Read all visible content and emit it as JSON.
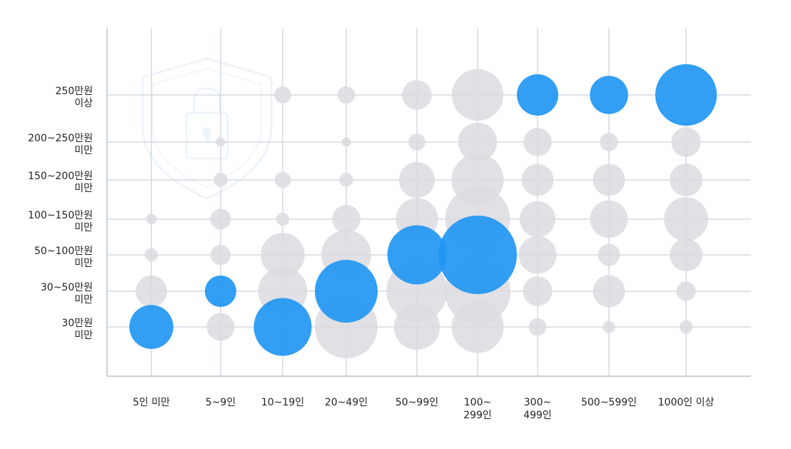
{
  "chart_data": {
    "type": "bubble",
    "x_categories": [
      "5인 미만",
      "5~9인",
      "10~19인",
      "20~49인",
      "50~99인",
      "100~ 299인",
      "300~ 499인",
      "500~599인",
      "1000인 이상"
    ],
    "x_tick_lines": [
      [
        "5인 미만"
      ],
      [
        "5~9인"
      ],
      [
        "10~19인"
      ],
      [
        "20~49인"
      ],
      [
        "50~99인"
      ],
      [
        "100~",
        "299인"
      ],
      [
        "300~",
        "499인"
      ],
      [
        "500~599인"
      ],
      [
        "1000인 이상"
      ]
    ],
    "y_categories": [
      "30만원 미만",
      "30~50만원 미만",
      "50~100만원 미만",
      "100~150만원 미만",
      "150~200만원 미만",
      "200~250만원 미만",
      "250만원 이상"
    ],
    "y_tick_lines": [
      [
        "30만원",
        "미만"
      ],
      [
        "30~50만원",
        "미만"
      ],
      [
        "50~100만원",
        "미만"
      ],
      [
        "100~150만원",
        "미만"
      ],
      [
        "150~200만원",
        "미만"
      ],
      [
        "200~250만원",
        "미만"
      ],
      [
        "250만원",
        "이상"
      ]
    ],
    "bubbles": [
      {
        "x": "5인 미만",
        "y": "30만원 미만",
        "r": 0.7,
        "highlight": true
      },
      {
        "x": "5인 미만",
        "y": "30~50만원 미만",
        "r": 0.5,
        "highlight": false
      },
      {
        "x": "5인 미만",
        "y": "50~100만원 미만",
        "r": 0.21,
        "highlight": false
      },
      {
        "x": "5인 미만",
        "y": "100~150만원 미만",
        "r": 0.17,
        "highlight": false
      },
      {
        "x": "5~9인",
        "y": "30만원 미만",
        "r": 0.44,
        "highlight": false
      },
      {
        "x": "5~9인",
        "y": "30~50만원 미만",
        "r": 0.5,
        "highlight": true
      },
      {
        "x": "5~9인",
        "y": "50~100만원 미만",
        "r": 0.32,
        "highlight": false
      },
      {
        "x": "5~9인",
        "y": "100~150만원 미만",
        "r": 0.33,
        "highlight": false
      },
      {
        "x": "5~9인",
        "y": "150~200만원 미만",
        "r": 0.22,
        "highlight": false
      },
      {
        "x": "5~9인",
        "y": "200~250만원 미만",
        "r": 0.15,
        "highlight": false
      },
      {
        "x": "10~19인",
        "y": "30만원 미만",
        "r": 0.92,
        "highlight": true
      },
      {
        "x": "10~19인",
        "y": "30~50만원 미만",
        "r": 0.78,
        "highlight": false
      },
      {
        "x": "10~19인",
        "y": "50~100만원 미만",
        "r": 0.7,
        "highlight": false
      },
      {
        "x": "10~19인",
        "y": "100~150만원 미만",
        "r": 0.21,
        "highlight": false
      },
      {
        "x": "10~19인",
        "y": "150~200만원 미만",
        "r": 0.26,
        "highlight": false
      },
      {
        "x": "10~19인",
        "y": "250만원 이상",
        "r": 0.27,
        "highlight": false
      },
      {
        "x": "20~49인",
        "y": "30만원 미만",
        "r": 1.0,
        "highlight": false
      },
      {
        "x": "20~49인",
        "y": "30~50만원 미만",
        "r": 1.0,
        "highlight": true
      },
      {
        "x": "20~49인",
        "y": "50~100만원 미만",
        "r": 0.79,
        "highlight": false
      },
      {
        "x": "20~49인",
        "y": "100~150만원 미만",
        "r": 0.45,
        "highlight": false
      },
      {
        "x": "20~49인",
        "y": "150~200만원 미만",
        "r": 0.22,
        "highlight": false
      },
      {
        "x": "20~49인",
        "y": "200~250만원 미만",
        "r": 0.15,
        "highlight": false
      },
      {
        "x": "20~49인",
        "y": "250만원 이상",
        "r": 0.28,
        "highlight": false
      },
      {
        "x": "50~99인",
        "y": "30만원 미만",
        "r": 0.73,
        "highlight": false
      },
      {
        "x": "50~99인",
        "y": "30~50만원 미만",
        "r": 0.97,
        "highlight": false
      },
      {
        "x": "50~99인",
        "y": "50~100만원 미만",
        "r": 0.94,
        "highlight": true
      },
      {
        "x": "50~99인",
        "y": "100~150만원 미만",
        "r": 0.67,
        "highlight": false
      },
      {
        "x": "50~99인",
        "y": "150~200만원 미만",
        "r": 0.57,
        "highlight": false
      },
      {
        "x": "50~99인",
        "y": "200~250만원 미만",
        "r": 0.27,
        "highlight": false
      },
      {
        "x": "50~99인",
        "y": "250만원 이상",
        "r": 0.47,
        "highlight": false
      },
      {
        "x": "100~ 299인",
        "y": "30만원 미만",
        "r": 0.83,
        "highlight": false
      },
      {
        "x": "100~ 299인",
        "y": "30~50만원 미만",
        "r": 1.05,
        "highlight": false
      },
      {
        "x": "100~ 299인",
        "y": "50~100만원 미만",
        "r": 1.25,
        "highlight": true
      },
      {
        "x": "100~ 299인",
        "y": "100~150만원 미만",
        "r": 1.03,
        "highlight": false
      },
      {
        "x": "100~ 299인",
        "y": "150~200만원 미만",
        "r": 0.83,
        "highlight": false
      },
      {
        "x": "100~ 299인",
        "y": "200~250만원 미만",
        "r": 0.62,
        "highlight": false
      },
      {
        "x": "100~ 299인",
        "y": "250만원 이상",
        "r": 0.82,
        "highlight": false
      },
      {
        "x": "300~ 499인",
        "y": "30만원 미만",
        "r": 0.28,
        "highlight": false
      },
      {
        "x": "300~ 499인",
        "y": "30~50만원 미만",
        "r": 0.47,
        "highlight": false
      },
      {
        "x": "300~ 499인",
        "y": "50~100만원 미만",
        "r": 0.6,
        "highlight": false
      },
      {
        "x": "300~ 499인",
        "y": "100~150만원 미만",
        "r": 0.57,
        "highlight": false
      },
      {
        "x": "300~ 499인",
        "y": "150~200만원 미만",
        "r": 0.51,
        "highlight": false
      },
      {
        "x": "300~ 499인",
        "y": "200~250만원 미만",
        "r": 0.45,
        "highlight": false
      },
      {
        "x": "300~ 499인",
        "y": "250만원 이상",
        "r": 0.66,
        "highlight": true
      },
      {
        "x": "500~599인",
        "y": "30만원 미만",
        "r": 0.2,
        "highlight": false
      },
      {
        "x": "500~599인",
        "y": "30~50만원 미만",
        "r": 0.51,
        "highlight": false
      },
      {
        "x": "500~599인",
        "y": "50~100만원 미만",
        "r": 0.35,
        "highlight": false
      },
      {
        "x": "500~599인",
        "y": "100~150만원 미만",
        "r": 0.6,
        "highlight": false
      },
      {
        "x": "500~599인",
        "y": "150~200만원 미만",
        "r": 0.51,
        "highlight": false
      },
      {
        "x": "500~599인",
        "y": "200~250만원 미만",
        "r": 0.29,
        "highlight": false
      },
      {
        "x": "500~599인",
        "y": "250만원 이상",
        "r": 0.61,
        "highlight": true
      },
      {
        "x": "1000인 이상",
        "y": "30만원 미만",
        "r": 0.21,
        "highlight": false
      },
      {
        "x": "1000인 이상",
        "y": "30~50만원 미만",
        "r": 0.31,
        "highlight": false
      },
      {
        "x": "1000인 이상",
        "y": "50~100만원 미만",
        "r": 0.52,
        "highlight": false
      },
      {
        "x": "1000인 이상",
        "y": "100~150만원 미만",
        "r": 0.7,
        "highlight": false
      },
      {
        "x": "1000인 이상",
        "y": "150~200만원 미만",
        "r": 0.52,
        "highlight": false
      },
      {
        "x": "1000인 이상",
        "y": "200~250만원 미만",
        "r": 0.47,
        "highlight": false
      },
      {
        "x": "1000인 이상",
        "y": "250만원 이상",
        "r": 0.98,
        "highlight": true
      }
    ],
    "colors": {
      "highlight": "#2196f3",
      "other": "#dcdadf",
      "grid": "#d3dae2",
      "axis": "#b8c2cc",
      "text": "#222222"
    },
    "grid": true
  },
  "watermark": {
    "icon": "shield-lock-icon"
  }
}
